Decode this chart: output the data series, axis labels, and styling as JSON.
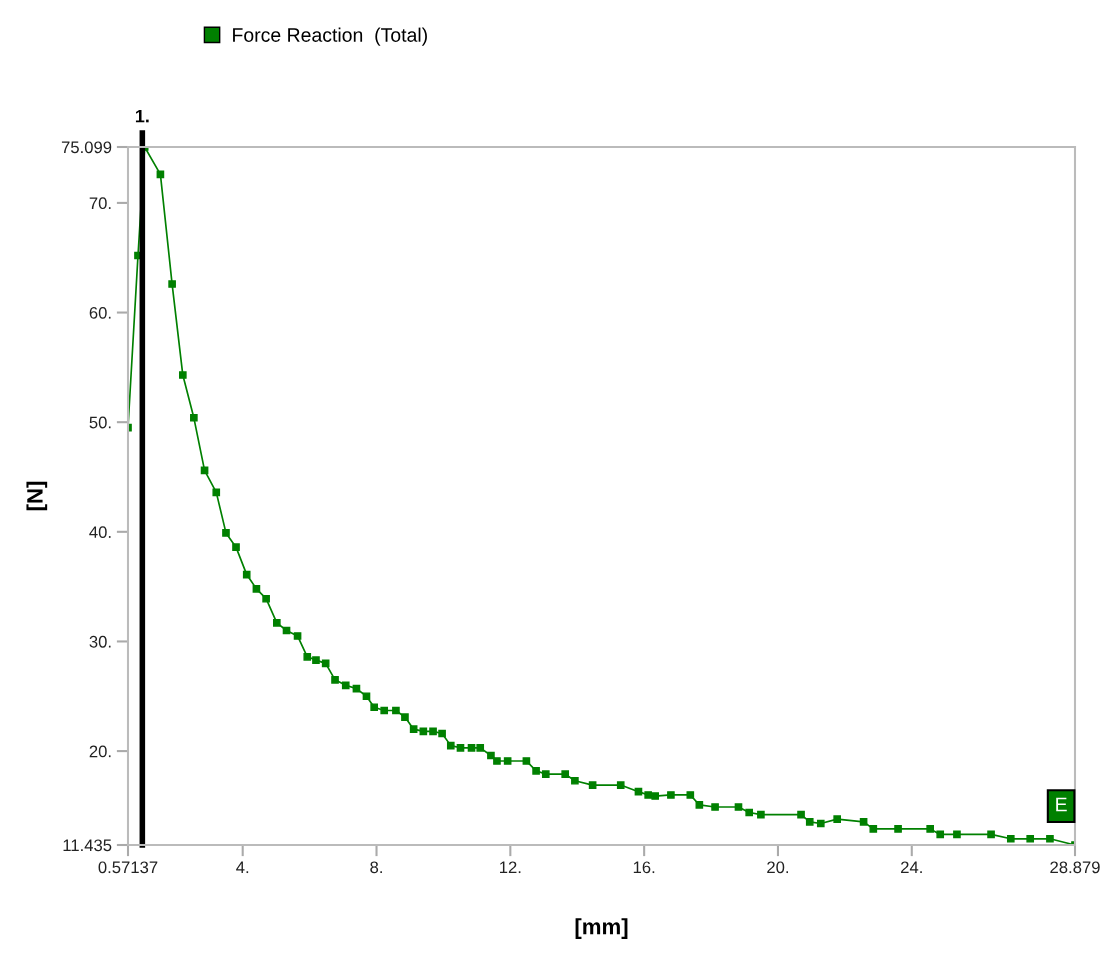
{
  "chart_data": {
    "type": "line",
    "xlabel": "[mm]",
    "ylabel": "[N]",
    "xlim": [
      0.57137,
      28.879
    ],
    "ylim": [
      11.435,
      75.099
    ],
    "xticks": [
      {
        "value": 0.57137,
        "label": "0.57137"
      },
      {
        "value": 4,
        "label": "4."
      },
      {
        "value": 8,
        "label": "8."
      },
      {
        "value": 12,
        "label": "12."
      },
      {
        "value": 16,
        "label": "16."
      },
      {
        "value": 20,
        "label": "20."
      },
      {
        "value": 24,
        "label": "24."
      },
      {
        "value": 28.879,
        "label": "28.879"
      }
    ],
    "yticks": [
      {
        "value": 11.435,
        "label": "11.435"
      },
      {
        "value": 20,
        "label": "20."
      },
      {
        "value": 30,
        "label": "30."
      },
      {
        "value": 40,
        "label": "40."
      },
      {
        "value": 50,
        "label": "50."
      },
      {
        "value": 60,
        "label": "60."
      },
      {
        "value": 70,
        "label": "70."
      },
      {
        "value": 75.099,
        "label": "75.099"
      }
    ],
    "series": [
      {
        "name": "Force Reaction  (Total)",
        "color": "#008000",
        "x": [
          0.57137,
          0.87,
          1.07,
          1.54,
          1.89,
          2.21,
          2.54,
          2.86,
          3.21,
          3.5,
          3.8,
          4.12,
          4.41,
          4.7,
          5.02,
          5.31,
          5.64,
          5.93,
          6.19,
          6.48,
          6.76,
          7.08,
          7.4,
          7.7,
          7.93,
          8.23,
          8.58,
          8.85,
          9.11,
          9.4,
          9.69,
          9.96,
          10.22,
          10.51,
          10.84,
          11.1,
          11.42,
          11.6,
          11.92,
          12.48,
          12.77,
          13.06,
          13.64,
          13.93,
          14.46,
          15.3,
          15.83,
          16.12,
          16.33,
          16.8,
          17.38,
          17.65,
          18.12,
          18.82,
          19.14,
          19.49,
          20.69,
          20.95,
          21.28,
          21.77,
          22.56,
          22.85,
          23.59,
          24.55,
          24.85,
          25.35,
          26.37,
          26.96,
          27.54,
          28.13,
          28.879
        ],
        "values": [
          49.5,
          65.2,
          75.099,
          72.6,
          62.6,
          54.3,
          50.4,
          45.6,
          43.6,
          39.9,
          38.6,
          36.1,
          34.8,
          33.9,
          31.7,
          31.0,
          30.5,
          28.6,
          28.3,
          28.0,
          26.5,
          26.0,
          25.7,
          25.0,
          24.0,
          23.7,
          23.7,
          23.1,
          22.0,
          21.8,
          21.8,
          21.6,
          20.5,
          20.3,
          20.3,
          20.3,
          19.6,
          19.1,
          19.1,
          19.1,
          18.2,
          17.9,
          17.9,
          17.3,
          16.9,
          16.9,
          16.3,
          16.0,
          15.9,
          16.0,
          16.0,
          15.1,
          14.9,
          14.9,
          14.4,
          14.2,
          14.2,
          13.55,
          13.4,
          13.8,
          13.55,
          12.9,
          12.9,
          12.9,
          12.4,
          12.4,
          12.4,
          12.0,
          12.0,
          12.0,
          11.435
        ]
      }
    ],
    "ref_lines": [
      {
        "axis": "x",
        "value": 1,
        "label": "1.",
        "color": "#000000"
      }
    ],
    "annotations": [
      {
        "text": "E",
        "x": 28.879,
        "y": 11.435
      }
    ],
    "marker": "square",
    "line_style": "solid",
    "legend": "top left",
    "grid": false
  }
}
